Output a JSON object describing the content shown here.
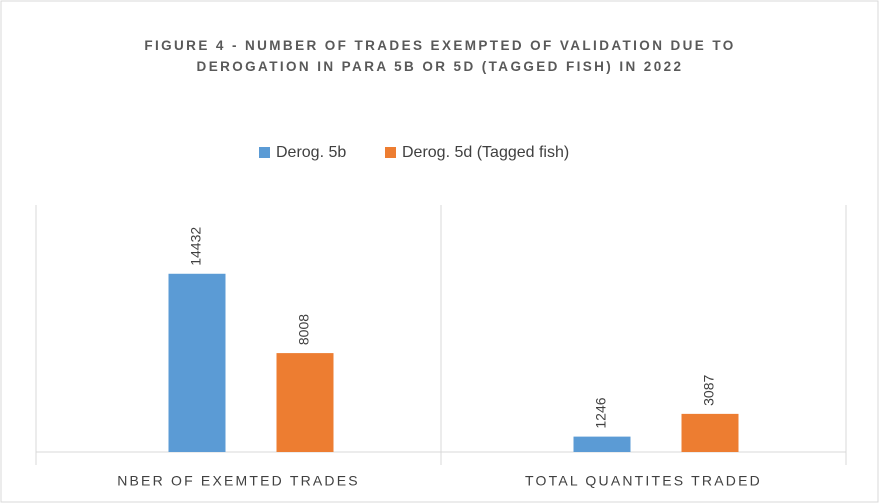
{
  "chart_data": {
    "type": "bar",
    "title": "FIGURE 4 - NUMBER OF TRADES EXEMPTED OF VALIDATION DUE TO DEROGATION IN PARA 5B OR 5D (TAGGED FISH) IN 2022",
    "categories": [
      "NBER OF EXEMTED TRADES",
      "TOTAL QUANTITES TRADED"
    ],
    "series": [
      {
        "name": "Derog. 5b",
        "color": "#5b9bd5",
        "values": [
          14432,
          1246
        ]
      },
      {
        "name": "Derog. 5d (Tagged fish)",
        "color": "#ed7d31",
        "values": [
          8008,
          3087
        ]
      }
    ],
    "ylim": [
      0,
      20000
    ],
    "legend": "top"
  }
}
